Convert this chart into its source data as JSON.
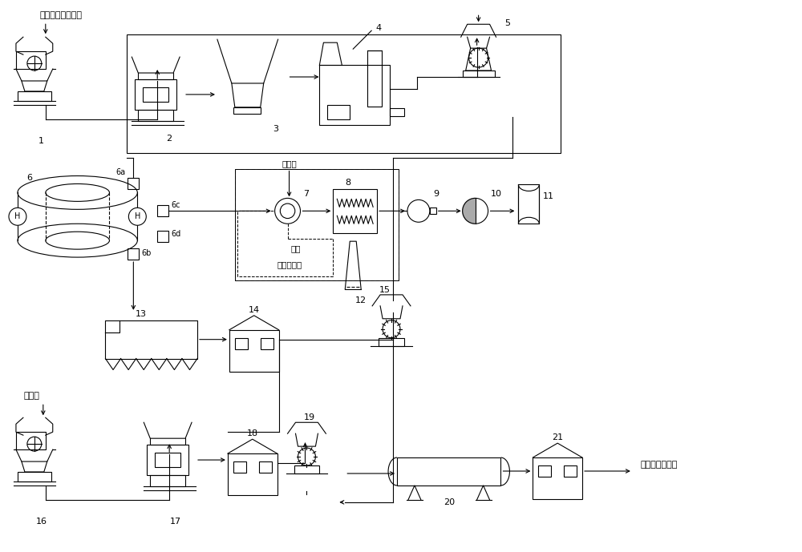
{
  "bg_color": "#ffffff",
  "line_color": "#000000",
  "label_top_left": "石灰石、校正原料",
  "label_hunhe": "混合材",
  "label_buchongshui": "补充水",
  "label_reshui": "热水",
  "label_huishou": "回收冷却水",
  "label_waiyun": "外运或成品包装"
}
